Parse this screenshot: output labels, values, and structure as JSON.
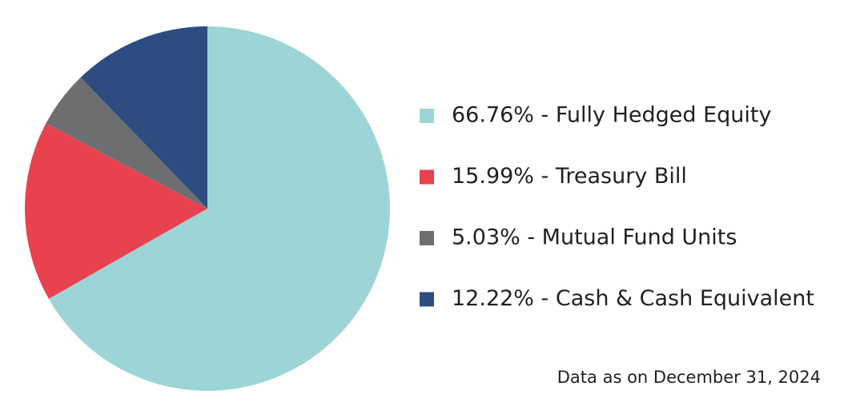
{
  "chart_data": {
    "type": "pie",
    "categories": [
      "66.76% - Fully Hedged Equity",
      "15.99% - Treasury Bill",
      "5.03% - Mutual Fund Units",
      "12.22% - Cash & Cash Equivalent"
    ],
    "values": [
      66.76,
      15.99,
      5.03,
      12.22
    ],
    "colors": [
      "#9dd5d6",
      "#e8424f",
      "#6d6e70",
      "#2d4d80"
    ],
    "legend": "right",
    "footnote": "Data as on December 31, 2024"
  }
}
